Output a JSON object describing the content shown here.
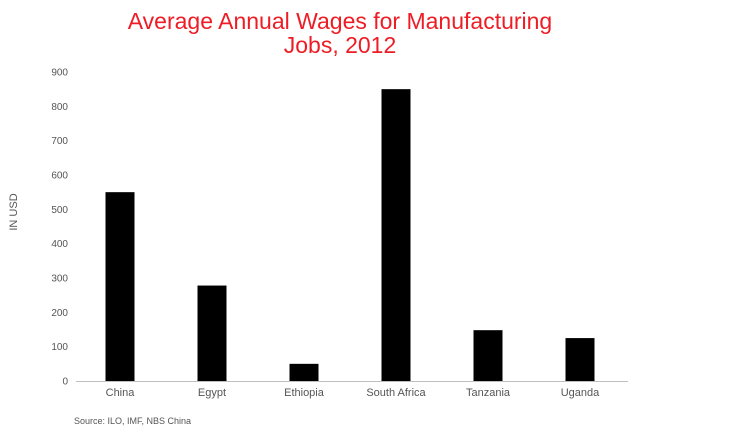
{
  "chart_data": {
    "type": "bar",
    "title_line1": "Average Annual Wages for Manufacturing",
    "title_line2": "Jobs, 2012",
    "ylabel": "IN USD",
    "xlabel": "",
    "categories": [
      "China",
      "Egypt",
      "Ethiopia",
      "South Africa",
      "Tanzania",
      "Uganda"
    ],
    "values": [
      550,
      278,
      50,
      850,
      148,
      125
    ],
    "ylim": [
      0,
      900
    ],
    "yticks": [
      0,
      100,
      200,
      300,
      400,
      500,
      600,
      700,
      800,
      900
    ],
    "grid": false,
    "bar_color": "#000000",
    "title_color": "#ee1c25",
    "source": "Source: ILO, IMF, NBS China"
  }
}
